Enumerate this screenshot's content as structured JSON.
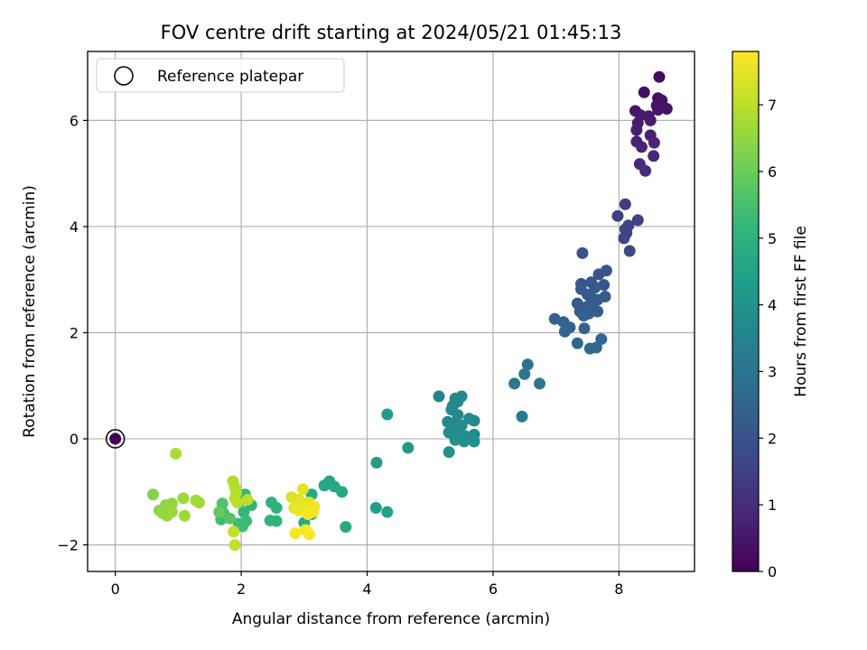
{
  "chart_data": {
    "type": "scatter",
    "title": "FOV centre drift starting at 2024/05/21 01:45:13",
    "xlabel": "Angular distance from reference (arcmin)",
    "ylabel": "Rotation from reference (arcmin)",
    "colorbar_label": "Hours from first FF file",
    "xlim": [
      -0.44,
      9.2
    ],
    "ylim": [
      -2.5,
      7.3
    ],
    "clim": [
      0,
      7.8
    ],
    "x_ticks": [
      0,
      2,
      4,
      6,
      8
    ],
    "y_ticks": [
      -2,
      0,
      2,
      4,
      6
    ],
    "colorbar_ticks": [
      0,
      1,
      2,
      3,
      4,
      5,
      6,
      7
    ],
    "grid": true,
    "legend": {
      "position": "top-left",
      "entries": [
        "Reference platepar"
      ]
    },
    "reference_point": {
      "x": 0,
      "y": 0,
      "hours": 0
    },
    "points": [
      {
        "x": 8.64,
        "y": 6.82,
        "h": 0.2
      },
      {
        "x": 8.4,
        "y": 6.53,
        "h": 0.3
      },
      {
        "x": 8.62,
        "y": 6.42,
        "h": 0.3
      },
      {
        "x": 8.68,
        "y": 6.38,
        "h": 0.35
      },
      {
        "x": 8.6,
        "y": 6.28,
        "h": 0.4
      },
      {
        "x": 8.76,
        "y": 6.22,
        "h": 0.4
      },
      {
        "x": 8.62,
        "y": 6.2,
        "h": 0.45
      },
      {
        "x": 8.26,
        "y": 6.18,
        "h": 0.5
      },
      {
        "x": 8.34,
        "y": 6.1,
        "h": 0.5
      },
      {
        "x": 8.47,
        "y": 6.08,
        "h": 0.55
      },
      {
        "x": 8.5,
        "y": 6.0,
        "h": 0.6
      },
      {
        "x": 8.3,
        "y": 5.95,
        "h": 0.65
      },
      {
        "x": 8.28,
        "y": 5.82,
        "h": 0.7
      },
      {
        "x": 8.5,
        "y": 5.72,
        "h": 0.7
      },
      {
        "x": 8.28,
        "y": 5.6,
        "h": 0.75
      },
      {
        "x": 8.56,
        "y": 5.58,
        "h": 0.8
      },
      {
        "x": 8.36,
        "y": 5.5,
        "h": 0.8
      },
      {
        "x": 8.55,
        "y": 5.33,
        "h": 0.85
      },
      {
        "x": 8.33,
        "y": 5.18,
        "h": 0.9
      },
      {
        "x": 8.42,
        "y": 5.05,
        "h": 0.95
      },
      {
        "x": 8.1,
        "y": 4.42,
        "h": 1.4
      },
      {
        "x": 7.98,
        "y": 4.2,
        "h": 1.5
      },
      {
        "x": 8.3,
        "y": 4.12,
        "h": 1.5
      },
      {
        "x": 8.15,
        "y": 4.02,
        "h": 1.55
      },
      {
        "x": 8.1,
        "y": 3.95,
        "h": 1.6
      },
      {
        "x": 8.12,
        "y": 3.88,
        "h": 1.6
      },
      {
        "x": 8.08,
        "y": 3.78,
        "h": 1.65
      },
      {
        "x": 8.17,
        "y": 3.54,
        "h": 1.7
      },
      {
        "x": 7.42,
        "y": 3.5,
        "h": 2.0
      },
      {
        "x": 7.8,
        "y": 3.17,
        "h": 2.0
      },
      {
        "x": 7.68,
        "y": 3.1,
        "h": 2.05
      },
      {
        "x": 7.56,
        "y": 2.95,
        "h": 2.1
      },
      {
        "x": 7.4,
        "y": 2.92,
        "h": 2.1
      },
      {
        "x": 7.76,
        "y": 2.9,
        "h": 2.1
      },
      {
        "x": 7.62,
        "y": 2.85,
        "h": 2.15
      },
      {
        "x": 7.4,
        "y": 2.82,
        "h": 2.15
      },
      {
        "x": 7.5,
        "y": 2.72,
        "h": 2.2
      },
      {
        "x": 7.78,
        "y": 2.68,
        "h": 2.2
      },
      {
        "x": 7.56,
        "y": 2.66,
        "h": 2.2
      },
      {
        "x": 7.66,
        "y": 2.62,
        "h": 2.25
      },
      {
        "x": 7.56,
        "y": 2.58,
        "h": 2.25
      },
      {
        "x": 7.34,
        "y": 2.55,
        "h": 2.25
      },
      {
        "x": 7.48,
        "y": 2.48,
        "h": 2.3
      },
      {
        "x": 7.6,
        "y": 2.44,
        "h": 2.3
      },
      {
        "x": 7.38,
        "y": 2.4,
        "h": 2.3
      },
      {
        "x": 7.66,
        "y": 2.4,
        "h": 2.3
      },
      {
        "x": 7.52,
        "y": 2.36,
        "h": 2.35
      },
      {
        "x": 7.44,
        "y": 2.32,
        "h": 2.35
      },
      {
        "x": 6.98,
        "y": 2.26,
        "h": 2.4
      },
      {
        "x": 7.12,
        "y": 2.2,
        "h": 2.4
      },
      {
        "x": 7.22,
        "y": 2.1,
        "h": 2.45
      },
      {
        "x": 7.45,
        "y": 2.08,
        "h": 2.45
      },
      {
        "x": 7.14,
        "y": 2.02,
        "h": 2.5
      },
      {
        "x": 7.72,
        "y": 1.88,
        "h": 2.55
      },
      {
        "x": 7.34,
        "y": 1.8,
        "h": 2.55
      },
      {
        "x": 7.54,
        "y": 1.7,
        "h": 2.6
      },
      {
        "x": 7.64,
        "y": 1.72,
        "h": 2.6
      },
      {
        "x": 6.55,
        "y": 1.4,
        "h": 3.0
      },
      {
        "x": 6.5,
        "y": 1.22,
        "h": 3.05
      },
      {
        "x": 6.34,
        "y": 1.04,
        "h": 3.1
      },
      {
        "x": 6.74,
        "y": 1.04,
        "h": 3.1
      },
      {
        "x": 6.46,
        "y": 0.42,
        "h": 3.2
      },
      {
        "x": 5.14,
        "y": 0.8,
        "h": 3.55
      },
      {
        "x": 5.5,
        "y": 0.8,
        "h": 3.55
      },
      {
        "x": 5.4,
        "y": 0.76,
        "h": 3.6
      },
      {
        "x": 5.44,
        "y": 0.7,
        "h": 3.6
      },
      {
        "x": 5.36,
        "y": 0.62,
        "h": 3.6
      },
      {
        "x": 5.34,
        "y": 0.55,
        "h": 3.65
      },
      {
        "x": 5.44,
        "y": 0.45,
        "h": 3.65
      },
      {
        "x": 5.62,
        "y": 0.38,
        "h": 3.7
      },
      {
        "x": 5.7,
        "y": 0.34,
        "h": 3.7
      },
      {
        "x": 5.28,
        "y": 0.32,
        "h": 3.7
      },
      {
        "x": 5.4,
        "y": 0.3,
        "h": 3.75
      },
      {
        "x": 5.5,
        "y": 0.25,
        "h": 3.75
      },
      {
        "x": 5.38,
        "y": 0.2,
        "h": 3.75
      },
      {
        "x": 5.3,
        "y": 0.12,
        "h": 3.8
      },
      {
        "x": 5.46,
        "y": 0.1,
        "h": 3.8
      },
      {
        "x": 5.7,
        "y": 0.08,
        "h": 3.8
      },
      {
        "x": 5.56,
        "y": 0.05,
        "h": 3.85
      },
      {
        "x": 5.48,
        "y": 0.02,
        "h": 3.85
      },
      {
        "x": 5.4,
        "y": -0.02,
        "h": 3.85
      },
      {
        "x": 5.54,
        "y": -0.05,
        "h": 3.9
      },
      {
        "x": 5.7,
        "y": -0.05,
        "h": 3.9
      },
      {
        "x": 5.3,
        "y": -0.25,
        "h": 3.95
      },
      {
        "x": 4.32,
        "y": 0.46,
        "h": 4.2
      },
      {
        "x": 4.65,
        "y": -0.17,
        "h": 4.25
      },
      {
        "x": 4.15,
        "y": -0.45,
        "h": 4.3
      },
      {
        "x": 4.14,
        "y": -1.3,
        "h": 4.4
      },
      {
        "x": 4.32,
        "y": -1.38,
        "h": 4.45
      },
      {
        "x": 3.4,
        "y": -0.8,
        "h": 4.6
      },
      {
        "x": 3.32,
        "y": -0.88,
        "h": 4.6
      },
      {
        "x": 3.48,
        "y": -0.9,
        "h": 4.65
      },
      {
        "x": 3.6,
        "y": -1.0,
        "h": 4.65
      },
      {
        "x": 3.12,
        "y": -1.05,
        "h": 4.7
      },
      {
        "x": 3.66,
        "y": -1.66,
        "h": 4.7
      },
      {
        "x": 3.0,
        "y": -1.58,
        "h": 4.75
      },
      {
        "x": 3.12,
        "y": -1.42,
        "h": 4.75
      },
      {
        "x": 2.48,
        "y": -1.2,
        "h": 5.0
      },
      {
        "x": 2.56,
        "y": -1.3,
        "h": 5.0
      },
      {
        "x": 2.46,
        "y": -1.54,
        "h": 5.05
      },
      {
        "x": 2.56,
        "y": -1.55,
        "h": 5.05
      },
      {
        "x": 2.16,
        "y": -1.25,
        "h": 5.1
      },
      {
        "x": 2.04,
        "y": -1.38,
        "h": 5.15
      },
      {
        "x": 2.06,
        "y": -1.05,
        "h": 5.2
      },
      {
        "x": 1.96,
        "y": -1.2,
        "h": 5.2
      },
      {
        "x": 2.08,
        "y": -1.55,
        "h": 5.3
      },
      {
        "x": 1.96,
        "y": -1.6,
        "h": 5.3
      },
      {
        "x": 2.02,
        "y": -1.65,
        "h": 5.35
      },
      {
        "x": 1.68,
        "y": -1.52,
        "h": 5.4
      },
      {
        "x": 1.72,
        "y": -1.4,
        "h": 5.5
      },
      {
        "x": 1.7,
        "y": -1.22,
        "h": 5.6
      },
      {
        "x": 1.82,
        "y": -1.5,
        "h": 5.7
      },
      {
        "x": 1.65,
        "y": -1.38,
        "h": 5.9
      },
      {
        "x": 0.6,
        "y": -1.05,
        "h": 6.3
      },
      {
        "x": 0.7,
        "y": -1.35,
        "h": 6.4
      },
      {
        "x": 0.8,
        "y": -1.25,
        "h": 6.45
      },
      {
        "x": 0.86,
        "y": -1.3,
        "h": 6.5
      },
      {
        "x": 0.9,
        "y": -1.22,
        "h": 6.5
      },
      {
        "x": 0.75,
        "y": -1.4,
        "h": 6.55
      },
      {
        "x": 0.82,
        "y": -1.45,
        "h": 6.55
      },
      {
        "x": 0.9,
        "y": -1.38,
        "h": 6.6
      },
      {
        "x": 1.08,
        "y": -1.12,
        "h": 6.65
      },
      {
        "x": 1.1,
        "y": -1.45,
        "h": 6.65
      },
      {
        "x": 1.28,
        "y": -1.16,
        "h": 6.7
      },
      {
        "x": 1.33,
        "y": -1.2,
        "h": 6.7
      },
      {
        "x": 0.96,
        "y": -0.28,
        "h": 6.8
      },
      {
        "x": 1.87,
        "y": -0.8,
        "h": 6.85
      },
      {
        "x": 1.9,
        "y": -0.92,
        "h": 6.9
      },
      {
        "x": 1.92,
        "y": -1.02,
        "h": 6.95
      },
      {
        "x": 1.9,
        "y": -1.12,
        "h": 6.95
      },
      {
        "x": 1.94,
        "y": -1.2,
        "h": 7.0
      },
      {
        "x": 2.1,
        "y": -1.15,
        "h": 7.0
      },
      {
        "x": 1.88,
        "y": -1.75,
        "h": 7.05
      },
      {
        "x": 1.9,
        "y": -2.0,
        "h": 7.05
      },
      {
        "x": 2.8,
        "y": -1.1,
        "h": 7.4
      },
      {
        "x": 2.92,
        "y": -1.15,
        "h": 7.45
      },
      {
        "x": 2.98,
        "y": -0.95,
        "h": 7.5
      },
      {
        "x": 3.08,
        "y": -1.2,
        "h": 7.5
      },
      {
        "x": 3.0,
        "y": -1.28,
        "h": 7.55
      },
      {
        "x": 2.84,
        "y": -1.3,
        "h": 7.55
      },
      {
        "x": 2.92,
        "y": -1.35,
        "h": 7.6
      },
      {
        "x": 3.1,
        "y": -1.32,
        "h": 7.6
      },
      {
        "x": 3.16,
        "y": -1.28,
        "h": 7.65
      },
      {
        "x": 3.14,
        "y": -1.38,
        "h": 7.65
      },
      {
        "x": 3.06,
        "y": -1.42,
        "h": 7.7
      },
      {
        "x": 2.86,
        "y": -1.78,
        "h": 7.7
      },
      {
        "x": 3.02,
        "y": -1.72,
        "h": 7.75
      },
      {
        "x": 3.08,
        "y": -1.8,
        "h": 7.75
      }
    ],
    "colormap": [
      "#440154",
      "#482878",
      "#3e4989",
      "#31688e",
      "#26828e",
      "#1f9e89",
      "#35b779",
      "#6ece58",
      "#b5de2b",
      "#fde725"
    ]
  }
}
